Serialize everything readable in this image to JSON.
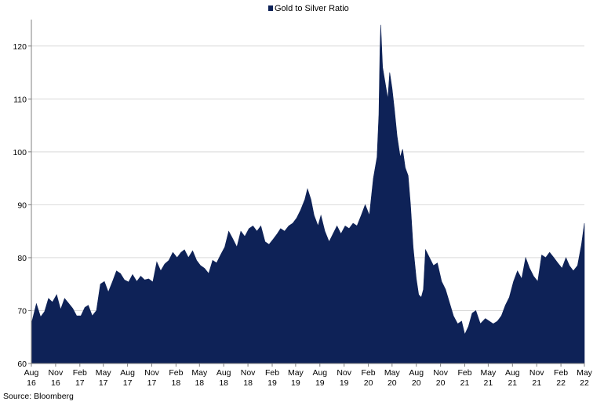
{
  "chart_data": {
    "type": "area",
    "legend": {
      "label": "Gold to Silver Ratio",
      "position": "top-center"
    },
    "colors": {
      "area": "#0e2257",
      "grid": "#d9d9d9",
      "axis": "#808080"
    },
    "ylim": [
      60,
      125
    ],
    "yticks": [
      60,
      70,
      80,
      90,
      100,
      110,
      120
    ],
    "grid": true,
    "xticks": [
      {
        "date": "2016-08-01",
        "l1": "Aug",
        "l2": "16"
      },
      {
        "date": "2016-11-01",
        "l1": "Nov",
        "l2": "16"
      },
      {
        "date": "2017-02-01",
        "l1": "Feb",
        "l2": "17"
      },
      {
        "date": "2017-05-01",
        "l1": "May",
        "l2": "17"
      },
      {
        "date": "2017-08-01",
        "l1": "Aug",
        "l2": "17"
      },
      {
        "date": "2017-11-01",
        "l1": "Nov",
        "l2": "17"
      },
      {
        "date": "2018-02-01",
        "l1": "Feb",
        "l2": "18"
      },
      {
        "date": "2018-05-01",
        "l1": "May",
        "l2": "18"
      },
      {
        "date": "2018-08-01",
        "l1": "Aug",
        "l2": "18"
      },
      {
        "date": "2018-11-01",
        "l1": "Nov",
        "l2": "18"
      },
      {
        "date": "2019-02-01",
        "l1": "Feb",
        "l2": "19"
      },
      {
        "date": "2019-05-01",
        "l1": "May",
        "l2": "19"
      },
      {
        "date": "2019-08-01",
        "l1": "Aug",
        "l2": "19"
      },
      {
        "date": "2019-11-01",
        "l1": "Nov",
        "l2": "19"
      },
      {
        "date": "2020-02-01",
        "l1": "Feb",
        "l2": "20"
      },
      {
        "date": "2020-05-01",
        "l1": "May",
        "l2": "20"
      },
      {
        "date": "2020-08-01",
        "l1": "Aug",
        "l2": "20"
      },
      {
        "date": "2020-11-01",
        "l1": "Nov",
        "l2": "20"
      },
      {
        "date": "2021-02-01",
        "l1": "Feb",
        "l2": "21"
      },
      {
        "date": "2021-05-01",
        "l1": "May",
        "l2": "21"
      },
      {
        "date": "2021-08-01",
        "l1": "Aug",
        "l2": "21"
      },
      {
        "date": "2021-11-01",
        "l1": "Nov",
        "l2": "21"
      },
      {
        "date": "2022-02-01",
        "l1": "Feb",
        "l2": "22"
      },
      {
        "date": "2022-05-01",
        "l1": "May",
        "l2": "22"
      }
    ],
    "series": [
      {
        "name": "Gold to Silver Ratio",
        "points": [
          [
            "2016-08-01",
            67.5
          ],
          [
            "2016-08-20",
            71.3
          ],
          [
            "2016-09-05",
            68.8
          ],
          [
            "2016-09-20",
            69.8
          ],
          [
            "2016-10-05",
            72.3
          ],
          [
            "2016-10-20",
            71.6
          ],
          [
            "2016-11-05",
            73.0
          ],
          [
            "2016-11-20",
            70.2
          ],
          [
            "2016-12-05",
            72.3
          ],
          [
            "2016-12-20",
            71.4
          ],
          [
            "2017-01-05",
            70.4
          ],
          [
            "2017-01-20",
            69.0
          ],
          [
            "2017-02-05",
            69.0
          ],
          [
            "2017-02-20",
            70.6
          ],
          [
            "2017-03-05",
            71.0
          ],
          [
            "2017-03-20",
            69.0
          ],
          [
            "2017-04-05",
            70.0
          ],
          [
            "2017-04-20",
            75.0
          ],
          [
            "2017-05-05",
            75.5
          ],
          [
            "2017-05-20",
            73.5
          ],
          [
            "2017-06-05",
            75.5
          ],
          [
            "2017-06-20",
            77.5
          ],
          [
            "2017-07-05",
            77.0
          ],
          [
            "2017-07-20",
            75.8
          ],
          [
            "2017-08-05",
            75.4
          ],
          [
            "2017-08-20",
            76.8
          ],
          [
            "2017-09-05",
            75.5
          ],
          [
            "2017-09-20",
            76.5
          ],
          [
            "2017-10-05",
            75.8
          ],
          [
            "2017-10-20",
            76.0
          ],
          [
            "2017-11-05",
            75.4
          ],
          [
            "2017-11-20",
            79.2
          ],
          [
            "2017-12-05",
            77.5
          ],
          [
            "2017-12-20",
            78.8
          ],
          [
            "2018-01-05",
            79.5
          ],
          [
            "2018-01-20",
            81.0
          ],
          [
            "2018-02-05",
            80.0
          ],
          [
            "2018-02-20",
            81.0
          ],
          [
            "2018-03-05",
            81.5
          ],
          [
            "2018-03-20",
            80.0
          ],
          [
            "2018-04-05",
            81.3
          ],
          [
            "2018-04-20",
            79.5
          ],
          [
            "2018-05-05",
            78.5
          ],
          [
            "2018-05-20",
            78.0
          ],
          [
            "2018-06-05",
            77.0
          ],
          [
            "2018-06-20",
            79.5
          ],
          [
            "2018-07-05",
            79.0
          ],
          [
            "2018-07-20",
            80.5
          ],
          [
            "2018-08-05",
            82.0
          ],
          [
            "2018-08-20",
            85.0
          ],
          [
            "2018-09-05",
            83.5
          ],
          [
            "2018-09-20",
            82.0
          ],
          [
            "2018-10-05",
            85.0
          ],
          [
            "2018-10-20",
            84.0
          ],
          [
            "2018-11-05",
            85.5
          ],
          [
            "2018-11-20",
            86.0
          ],
          [
            "2018-12-05",
            85.0
          ],
          [
            "2018-12-20",
            86.0
          ],
          [
            "2019-01-05",
            83.0
          ],
          [
            "2019-01-20",
            82.5
          ],
          [
            "2019-02-05",
            83.5
          ],
          [
            "2019-02-20",
            84.5
          ],
          [
            "2019-03-05",
            85.5
          ],
          [
            "2019-03-20",
            85.0
          ],
          [
            "2019-04-05",
            86.0
          ],
          [
            "2019-04-20",
            86.5
          ],
          [
            "2019-05-05",
            87.5
          ],
          [
            "2019-05-20",
            89.0
          ],
          [
            "2019-06-05",
            91.0
          ],
          [
            "2019-06-15",
            93.0
          ],
          [
            "2019-06-28",
            91.0
          ],
          [
            "2019-07-10",
            88.0
          ],
          [
            "2019-07-25",
            86.0
          ],
          [
            "2019-08-05",
            88.0
          ],
          [
            "2019-08-20",
            85.0
          ],
          [
            "2019-09-05",
            83.0
          ],
          [
            "2019-09-20",
            84.5
          ],
          [
            "2019-10-05",
            86.0
          ],
          [
            "2019-10-20",
            84.5
          ],
          [
            "2019-11-05",
            86.0
          ],
          [
            "2019-11-20",
            85.5
          ],
          [
            "2019-12-05",
            86.5
          ],
          [
            "2019-12-20",
            86.0
          ],
          [
            "2020-01-05",
            88.0
          ],
          [
            "2020-01-20",
            90.0
          ],
          [
            "2020-02-05",
            88.0
          ],
          [
            "2020-02-20",
            95.0
          ],
          [
            "2020-03-05",
            99.0
          ],
          [
            "2020-03-12",
            107.0
          ],
          [
            "2020-03-16",
            119.0
          ],
          [
            "2020-03-19",
            124.0
          ],
          [
            "2020-03-26",
            116.0
          ],
          [
            "2020-04-05",
            113.0
          ],
          [
            "2020-04-15",
            110.0
          ],
          [
            "2020-04-22",
            115.0
          ],
          [
            "2020-05-01",
            112.0
          ],
          [
            "2020-05-10",
            108.0
          ],
          [
            "2020-05-20",
            103.0
          ],
          [
            "2020-06-01",
            99.0
          ],
          [
            "2020-06-10",
            100.5
          ],
          [
            "2020-06-20",
            97.0
          ],
          [
            "2020-07-01",
            95.5
          ],
          [
            "2020-07-10",
            90.0
          ],
          [
            "2020-07-20",
            82.0
          ],
          [
            "2020-08-01",
            76.0
          ],
          [
            "2020-08-10",
            73.0
          ],
          [
            "2020-08-20",
            72.5
          ],
          [
            "2020-08-28",
            74.0
          ],
          [
            "2020-09-05",
            81.5
          ],
          [
            "2020-09-20",
            80.0
          ],
          [
            "2020-10-05",
            78.5
          ],
          [
            "2020-10-20",
            79.0
          ],
          [
            "2020-11-05",
            75.5
          ],
          [
            "2020-11-20",
            74.0
          ],
          [
            "2020-12-05",
            71.5
          ],
          [
            "2020-12-20",
            69.0
          ],
          [
            "2021-01-05",
            67.5
          ],
          [
            "2021-01-20",
            68.0
          ],
          [
            "2021-02-01",
            65.5
          ],
          [
            "2021-02-15",
            67.0
          ],
          [
            "2021-03-01",
            69.5
          ],
          [
            "2021-03-15",
            70.0
          ],
          [
            "2021-04-01",
            67.5
          ],
          [
            "2021-04-20",
            68.5
          ],
          [
            "2021-05-05",
            68.0
          ],
          [
            "2021-05-20",
            67.5
          ],
          [
            "2021-06-05",
            68.0
          ],
          [
            "2021-06-20",
            69.0
          ],
          [
            "2021-07-05",
            71.0
          ],
          [
            "2021-07-20",
            72.5
          ],
          [
            "2021-08-05",
            75.5
          ],
          [
            "2021-08-20",
            77.5
          ],
          [
            "2021-09-05",
            76.0
          ],
          [
            "2021-09-20",
            80.0
          ],
          [
            "2021-10-05",
            78.0
          ],
          [
            "2021-10-20",
            76.5
          ],
          [
            "2021-11-05",
            75.5
          ],
          [
            "2021-11-20",
            80.5
          ],
          [
            "2021-12-05",
            80.0
          ],
          [
            "2021-12-20",
            81.0
          ],
          [
            "2022-01-05",
            80.0
          ],
          [
            "2022-01-20",
            79.0
          ],
          [
            "2022-02-05",
            78.0
          ],
          [
            "2022-02-20",
            80.0
          ],
          [
            "2022-03-05",
            78.5
          ],
          [
            "2022-03-20",
            77.5
          ],
          [
            "2022-04-05",
            78.5
          ],
          [
            "2022-04-20",
            82.5
          ],
          [
            "2022-05-01",
            86.5
          ]
        ]
      }
    ],
    "source": "Source: Bloomberg"
  }
}
